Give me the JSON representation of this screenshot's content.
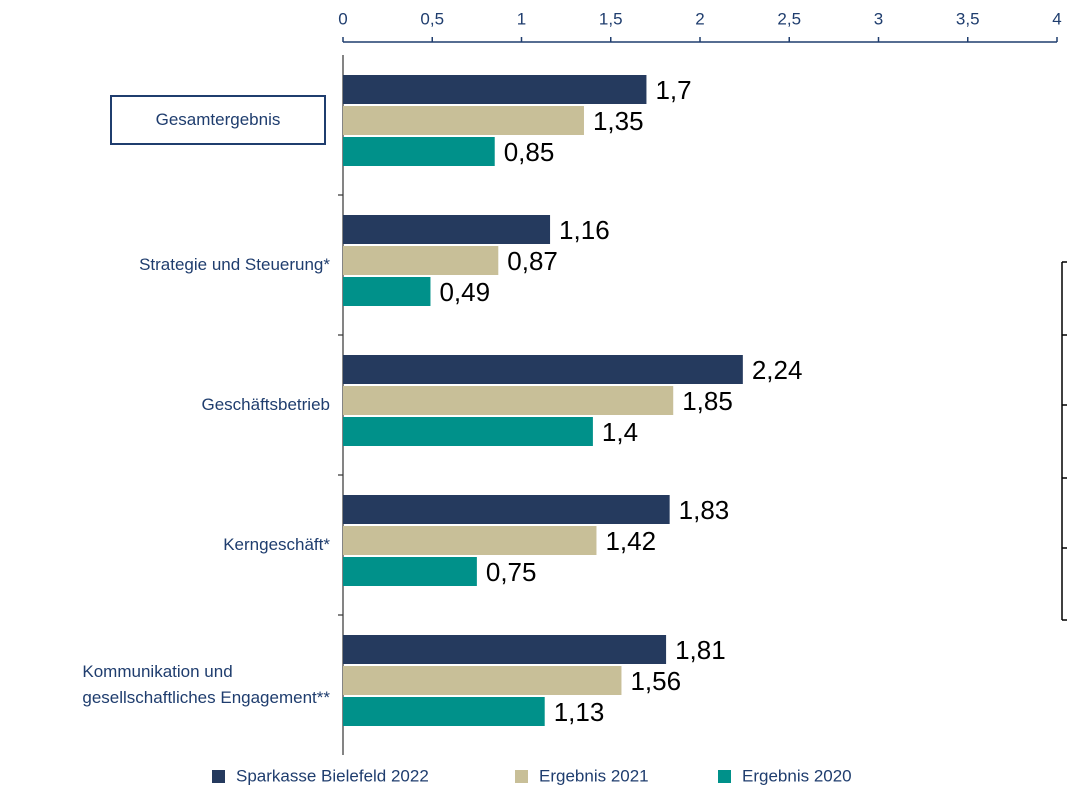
{
  "chart_data": {
    "type": "bar",
    "orientation": "horizontal",
    "categories": [
      "Gesamtergebnis",
      "Strategie und Steuerung*",
      "Geschäftsbetrieb",
      "Kerngeschäft*",
      "Kommunikation und\ngesellschaftliches Engagement**"
    ],
    "series": [
      {
        "name": "Sparkasse Bielefeld 2022",
        "color": "#253a5e",
        "values": [
          1.7,
          1.16,
          2.24,
          1.83,
          1.81
        ],
        "value_labels": [
          "1,7",
          "1,16",
          "2,24",
          "1,83",
          "1,81"
        ]
      },
      {
        "name": "Ergebnis 2021",
        "color": "#c8bf98",
        "values": [
          1.35,
          0.87,
          1.85,
          1.42,
          1.56
        ],
        "value_labels": [
          "1,35",
          "0,87",
          "1,85",
          "1,42",
          "1,56"
        ]
      },
      {
        "name": "Ergebnis 2020",
        "color": "#00918a",
        "values": [
          0.85,
          0.49,
          1.4,
          0.75,
          1.13
        ],
        "value_labels": [
          "0,85",
          "0,49",
          "1,4",
          "0,75",
          "1,13"
        ]
      }
    ],
    "xlim": [
      0,
      4
    ],
    "xticks": [
      0,
      {
        "value": 0.5,
        "label": "0,5"
      },
      1,
      {
        "value": 1.5,
        "label": "1,5"
      },
      2,
      {
        "value": 2.5,
        "label": "2,5"
      },
      3,
      {
        "value": 3.5,
        "label": "3,5"
      },
      4
    ],
    "legend": "bottom"
  }
}
